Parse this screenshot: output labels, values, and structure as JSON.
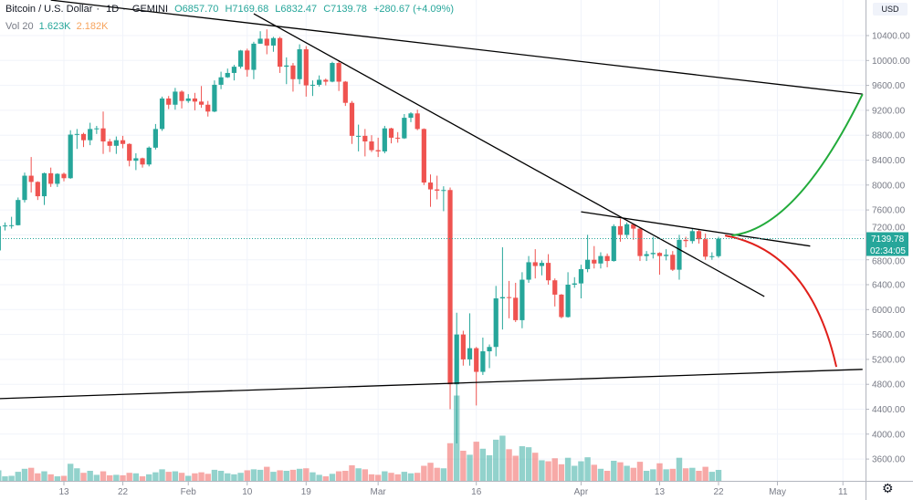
{
  "header": {
    "symbol": "Bitcoin / U.S. Dollar",
    "interval": "1D",
    "exchange": "GEMINI",
    "open": "O6857.70",
    "high": "H7169.68",
    "low": "L6832.47",
    "close": "C7139.78",
    "change": "+280.67 (+4.09%)",
    "volume_label": "Vol 20",
    "volume_ma": "1.623K",
    "volume_value": "2.182K"
  },
  "price_axis": {
    "currency": "USD",
    "last_price": "7139.78",
    "countdown": "02:34:05",
    "settings_icon": "gear-icon"
  },
  "colors": {
    "up": "#26a69a",
    "down": "#ef5350",
    "grid": "#f0f3fa",
    "drawing": "#000000",
    "bull_projection": "#22ab3b",
    "bear_projection": "#e0201b",
    "volume_ma": "#f7a35c"
  },
  "chart_data": {
    "type": "candlestick",
    "title": "Bitcoin / U.S. Dollar · 1D · GEMINI",
    "ylim": [
      3300,
      10800
    ],
    "y_ticks": [
      "3600.00",
      "4000.00",
      "4400.00",
      "4800.00",
      "5200.00",
      "5600.00",
      "6000.00",
      "6400.00",
      "6800.00",
      "7200.00",
      "7600.00",
      "8000.00",
      "8400.00",
      "8800.00",
      "9200.00",
      "9600.00",
      "10000.00",
      "10400.00"
    ],
    "x_range": [
      "2020-01-03",
      "2020-05-19"
    ],
    "x_ticks": [
      {
        "date": "2020-01-13",
        "label": "13"
      },
      {
        "date": "2020-01-22",
        "label": "22"
      },
      {
        "date": "2020-02-01",
        "label": "Feb"
      },
      {
        "date": "2020-02-10",
        "label": "10"
      },
      {
        "date": "2020-02-19",
        "label": "19"
      },
      {
        "date": "2020-03-01",
        "label": "Mar"
      },
      {
        "date": "2020-03-16",
        "label": "16"
      },
      {
        "date": "2020-04-01",
        "label": "Apr"
      },
      {
        "date": "2020-04-13",
        "label": "13"
      },
      {
        "date": "2020-04-22",
        "label": "22"
      },
      {
        "date": "2020-05-01",
        "label": "May"
      },
      {
        "date": "2020-05-11",
        "label": "11"
      }
    ],
    "grid": true,
    "last_price_line": 7139.78,
    "volume_unit": "K",
    "candles_columns": [
      "date",
      "open",
      "high",
      "low",
      "close",
      "volume"
    ],
    "candles": [
      [
        "2020-01-03",
        6950,
        7400,
        6880,
        7340,
        2.1
      ],
      [
        "2020-01-04",
        7340,
        7400,
        7270,
        7350,
        0.9
      ],
      [
        "2020-01-05",
        7350,
        7490,
        7300,
        7355,
        1.0
      ],
      [
        "2020-01-06",
        7355,
        7800,
        7350,
        7760,
        1.8
      ],
      [
        "2020-01-07",
        7760,
        8200,
        7720,
        8150,
        2.4
      ],
      [
        "2020-01-08",
        8150,
        8450,
        7880,
        8050,
        2.6
      ],
      [
        "2020-01-09",
        8050,
        8060,
        7760,
        7820,
        1.5
      ],
      [
        "2020-01-10",
        7820,
        8200,
        7680,
        8190,
        1.9
      ],
      [
        "2020-01-11",
        8190,
        8280,
        7970,
        8020,
        1.3
      ],
      [
        "2020-01-12",
        8020,
        8190,
        7970,
        8180,
        0.9
      ],
      [
        "2020-01-13",
        8180,
        8200,
        8060,
        8110,
        1.0
      ],
      [
        "2020-01-14",
        8110,
        8880,
        8100,
        8810,
        3.4
      ],
      [
        "2020-01-15",
        8810,
        8900,
        8580,
        8820,
        2.5
      ],
      [
        "2020-01-16",
        8820,
        8840,
        8610,
        8720,
        1.6
      ],
      [
        "2020-01-17",
        8720,
        9000,
        8640,
        8900,
        2.0
      ],
      [
        "2020-01-18",
        8900,
        8950,
        8820,
        8910,
        1.2
      ],
      [
        "2020-01-19",
        8910,
        9180,
        8500,
        8700,
        1.9
      ],
      [
        "2020-01-20",
        8700,
        8740,
        8530,
        8630,
        1.1
      ],
      [
        "2020-01-21",
        8630,
        8780,
        8500,
        8720,
        1.2
      ],
      [
        "2020-01-22",
        8720,
        8790,
        8590,
        8660,
        1.1
      ],
      [
        "2020-01-23",
        8660,
        8670,
        8300,
        8390,
        1.6
      ],
      [
        "2020-01-24",
        8390,
        8510,
        8240,
        8430,
        1.5
      ],
      [
        "2020-01-25",
        8430,
        8440,
        8280,
        8330,
        0.9
      ],
      [
        "2020-01-26",
        8330,
        8620,
        8300,
        8600,
        1.3
      ],
      [
        "2020-01-27",
        8600,
        8980,
        8570,
        8900,
        1.7
      ],
      [
        "2020-01-28",
        8900,
        9420,
        8870,
        9390,
        2.3
      ],
      [
        "2020-01-29",
        9390,
        9430,
        9220,
        9290,
        1.8
      ],
      [
        "2020-01-30",
        9290,
        9560,
        9210,
        9500,
        1.9
      ],
      [
        "2020-01-31",
        9500,
        9520,
        9230,
        9350,
        1.6
      ],
      [
        "2020-02-01",
        9350,
        9460,
        9320,
        9390,
        1.0
      ],
      [
        "2020-02-02",
        9390,
        9480,
        9200,
        9340,
        1.5
      ],
      [
        "2020-02-03",
        9340,
        9590,
        9240,
        9290,
        1.7
      ],
      [
        "2020-02-04",
        9290,
        9350,
        9100,
        9180,
        1.4
      ],
      [
        "2020-02-05",
        9180,
        9680,
        9170,
        9610,
        2.2
      ],
      [
        "2020-02-06",
        9610,
        9820,
        9540,
        9730,
        2.0
      ],
      [
        "2020-02-07",
        9730,
        9870,
        9720,
        9800,
        1.5
      ],
      [
        "2020-02-08",
        9800,
        9930,
        9680,
        9900,
        1.3
      ],
      [
        "2020-02-09",
        9900,
        10170,
        9870,
        10160,
        1.6
      ],
      [
        "2020-02-10",
        10160,
        10190,
        9740,
        9850,
        2.1
      ],
      [
        "2020-02-11",
        9850,
        10300,
        9700,
        10270,
        2.3
      ],
      [
        "2020-02-12",
        10270,
        10470,
        10270,
        10350,
        2.2
      ],
      [
        "2020-02-13",
        10350,
        10500,
        10100,
        10240,
        2.8
      ],
      [
        "2020-02-14",
        10240,
        10380,
        10140,
        10360,
        1.8
      ],
      [
        "2020-02-15",
        10360,
        10380,
        9800,
        9900,
        2.1
      ],
      [
        "2020-02-16",
        9900,
        10050,
        9620,
        9920,
        2.0
      ],
      [
        "2020-02-17",
        9920,
        9960,
        9500,
        9700,
        2.2
      ],
      [
        "2020-02-18",
        9700,
        10260,
        9620,
        10180,
        2.4
      ],
      [
        "2020-02-19",
        10180,
        10230,
        9420,
        9600,
        2.5
      ],
      [
        "2020-02-20",
        9600,
        9680,
        9430,
        9610,
        1.7
      ],
      [
        "2020-02-21",
        9610,
        9760,
        9580,
        9690,
        1.2
      ],
      [
        "2020-02-22",
        9690,
        9710,
        9600,
        9660,
        0.9
      ],
      [
        "2020-02-23",
        9660,
        9980,
        9650,
        9960,
        1.4
      ],
      [
        "2020-02-24",
        9960,
        10000,
        9510,
        9660,
        1.9
      ],
      [
        "2020-02-25",
        9660,
        9670,
        9270,
        9320,
        2.0
      ],
      [
        "2020-02-26",
        9320,
        9350,
        8660,
        8790,
        3.1
      ],
      [
        "2020-02-27",
        8790,
        8970,
        8540,
        8790,
        2.5
      ],
      [
        "2020-02-28",
        8790,
        8900,
        8460,
        8700,
        2.3
      ],
      [
        "2020-02-29",
        8700,
        8800,
        8530,
        8560,
        1.3
      ],
      [
        "2020-03-01",
        8560,
        8760,
        8450,
        8540,
        1.2
      ],
      [
        "2020-03-02",
        8540,
        8950,
        8510,
        8910,
        1.9
      ],
      [
        "2020-03-03",
        8910,
        8920,
        8670,
        8760,
        1.6
      ],
      [
        "2020-03-04",
        8760,
        8850,
        8680,
        8750,
        1.3
      ],
      [
        "2020-03-05",
        8750,
        9140,
        8740,
        9080,
        1.8
      ],
      [
        "2020-03-06",
        9080,
        9170,
        9010,
        9150,
        1.5
      ],
      [
        "2020-03-07",
        9150,
        9210,
        8880,
        8900,
        1.6
      ],
      [
        "2020-03-08",
        8900,
        8910,
        8000,
        8040,
        3.0
      ],
      [
        "2020-03-09",
        8040,
        8170,
        7650,
        7930,
        3.6
      ],
      [
        "2020-03-10",
        7930,
        8150,
        7770,
        7910,
        2.6
      ],
      [
        "2020-03-11",
        7910,
        7980,
        7580,
        7920,
        2.5
      ],
      [
        "2020-03-12",
        7920,
        7960,
        4400,
        4800,
        7.5
      ],
      [
        "2020-03-13",
        4800,
        5950,
        3850,
        5600,
        17.0
      ],
      [
        "2020-03-14",
        5600,
        5660,
        5100,
        5200,
        6.0
      ],
      [
        "2020-03-15",
        5200,
        5940,
        5100,
        5380,
        5.2
      ],
      [
        "2020-03-16",
        5380,
        5400,
        4460,
        5000,
        7.8
      ],
      [
        "2020-03-17",
        5000,
        5550,
        4950,
        5330,
        6.4
      ],
      [
        "2020-03-18",
        5330,
        5440,
        5060,
        5400,
        5.1
      ],
      [
        "2020-03-19",
        5400,
        6380,
        5250,
        6180,
        8.2
      ],
      [
        "2020-03-20",
        6180,
        7000,
        5680,
        6200,
        9.0
      ],
      [
        "2020-03-21",
        6200,
        6460,
        5860,
        6190,
        6.3
      ],
      [
        "2020-03-22",
        6190,
        6430,
        5800,
        5830,
        5.0
      ],
      [
        "2020-03-23",
        5830,
        6600,
        5700,
        6480,
        6.9
      ],
      [
        "2020-03-24",
        6480,
        6860,
        6430,
        6760,
        6.7
      ],
      [
        "2020-03-25",
        6760,
        6970,
        6500,
        6700,
        5.6
      ],
      [
        "2020-03-26",
        6700,
        6790,
        6550,
        6750,
        4.1
      ],
      [
        "2020-03-27",
        6750,
        6890,
        6400,
        6470,
        3.9
      ],
      [
        "2020-03-28",
        6470,
        6500,
        6050,
        6240,
        4.5
      ],
      [
        "2020-03-29",
        6240,
        6250,
        5860,
        5880,
        3.3
      ],
      [
        "2020-03-30",
        5880,
        6600,
        5870,
        6400,
        4.6
      ],
      [
        "2020-03-31",
        6400,
        6520,
        6350,
        6420,
        3.0
      ],
      [
        "2020-04-01",
        6420,
        6720,
        6180,
        6650,
        3.9
      ],
      [
        "2020-04-02",
        6650,
        7200,
        6600,
        6800,
        4.7
      ],
      [
        "2020-04-03",
        6800,
        7020,
        6660,
        6740,
        3.2
      ],
      [
        "2020-04-04",
        6740,
        6920,
        6660,
        6860,
        2.4
      ],
      [
        "2020-04-05",
        6860,
        6900,
        6680,
        6780,
        2.0
      ],
      [
        "2020-04-06",
        6780,
        7370,
        6770,
        7340,
        4.0
      ],
      [
        "2020-04-07",
        7340,
        7460,
        7090,
        7200,
        3.7
      ],
      [
        "2020-04-08",
        7200,
        7400,
        7150,
        7370,
        3.0
      ],
      [
        "2020-04-09",
        7370,
        7380,
        7120,
        7300,
        2.6
      ],
      [
        "2020-04-10",
        7300,
        7310,
        6780,
        6860,
        3.8
      ],
      [
        "2020-04-11",
        6860,
        6940,
        6780,
        6890,
        2.0
      ],
      [
        "2020-04-12",
        6890,
        7170,
        6820,
        6910,
        2.3
      ],
      [
        "2020-04-13",
        6910,
        6920,
        6560,
        6860,
        3.5
      ],
      [
        "2020-04-14",
        6860,
        6970,
        6790,
        6880,
        2.3
      ],
      [
        "2020-04-15",
        6880,
        6940,
        6620,
        6640,
        2.4
      ],
      [
        "2020-04-16",
        6640,
        7200,
        6480,
        7120,
        4.6
      ],
      [
        "2020-04-17",
        7120,
        7170,
        7000,
        7100,
        2.5
      ],
      [
        "2020-04-18",
        7100,
        7300,
        7060,
        7260,
        2.6
      ],
      [
        "2020-04-19",
        7260,
        7280,
        7060,
        7130,
        2.0
      ],
      [
        "2020-04-20",
        7130,
        7220,
        6800,
        6850,
        2.8
      ],
      [
        "2020-04-21",
        6850,
        6920,
        6800,
        6857.7,
        1.8
      ],
      [
        "2020-04-22",
        6857.7,
        7169.68,
        6832.47,
        7139.78,
        2.182
      ]
    ],
    "drawings": [
      {
        "kind": "trendline",
        "color": "#000000",
        "points": [
          [
            "2020-01-11",
            10970
          ],
          [
            "2020-05-14",
            9460
          ]
        ]
      },
      {
        "kind": "trendline",
        "color": "#000000",
        "points": [
          [
            "2020-02-11",
            10750
          ],
          [
            "2020-04-29",
            6210
          ]
        ]
      },
      {
        "kind": "trendline",
        "color": "#000000",
        "points": [
          [
            "2020-04-01",
            7570
          ],
          [
            "2020-05-06",
            7020
          ]
        ]
      },
      {
        "kind": "trendline",
        "color": "#000000",
        "points": [
          [
            "2020-01-03",
            4570
          ],
          [
            "2020-05-14",
            5040
          ]
        ]
      },
      {
        "kind": "curve",
        "color": "#22ab3b",
        "points": [
          [
            "2020-04-24",
            7190
          ],
          [
            "2020-05-04",
            7310
          ],
          [
            "2020-05-14",
            9460
          ]
        ]
      },
      {
        "kind": "curve",
        "color": "#e0201b",
        "points": [
          [
            "2020-04-23",
            7190
          ],
          [
            "2020-05-06",
            6940
          ],
          [
            "2020-05-10",
            5080
          ]
        ]
      }
    ]
  }
}
